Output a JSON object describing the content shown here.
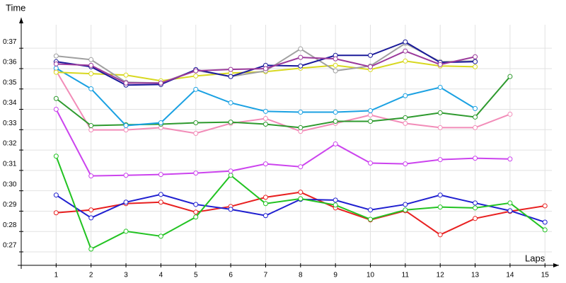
{
  "chart_data": {
    "type": "line",
    "xlabel": "Laps",
    "ylabel": "Time",
    "x": [
      1,
      2,
      3,
      4,
      5,
      6,
      7,
      8,
      9,
      10,
      11,
      12,
      13,
      14,
      15
    ],
    "xlim": [
      0,
      15.4
    ],
    "xticks": [
      1,
      2,
      3,
      4,
      5,
      6,
      7,
      8,
      9,
      10,
      11,
      12,
      13,
      14,
      15
    ],
    "ylim": [
      26.34,
      38.5
    ],
    "yticks": [
      {
        "value": 27,
        "label": "0:27"
      },
      {
        "value": 28,
        "label": "0:28"
      },
      {
        "value": 29,
        "label": "0:29"
      },
      {
        "value": 30,
        "label": "0:30"
      },
      {
        "value": 31,
        "label": "0:31"
      },
      {
        "value": 32,
        "label": "0:32"
      },
      {
        "value": 33,
        "label": "0:33"
      },
      {
        "value": 34,
        "label": "0:34"
      },
      {
        "value": 35,
        "label": "0:35"
      },
      {
        "value": 36,
        "label": "0:36"
      },
      {
        "value": 37,
        "label": "0:37"
      }
    ],
    "grid": true,
    "series": [
      {
        "color": "#e82020",
        "values": [
          28.92,
          29.06,
          29.37,
          29.44,
          28.95,
          29.23,
          29.68,
          29.93,
          29.16,
          28.57,
          29.02,
          27.84,
          28.64,
          28.99,
          29.26
        ]
      },
      {
        "color": "#1f1fd0",
        "values": [
          29.79,
          28.67,
          29.44,
          29.82,
          29.33,
          29.09,
          28.78,
          29.58,
          29.54,
          29.06,
          29.33,
          29.79,
          29.4,
          29.02,
          28.46
        ]
      },
      {
        "color": "#22c322",
        "values": [
          31.7,
          27.14,
          28.01,
          27.77,
          28.71,
          30.76,
          29.37,
          29.61,
          29.3,
          28.6,
          29.06,
          29.2,
          29.16,
          29.4,
          28.08
        ]
      },
      {
        "color": "#cc44ee",
        "values": [
          34.0,
          30.73,
          30.76,
          30.8,
          30.87,
          30.97,
          31.32,
          31.18,
          32.3,
          31.36,
          31.32,
          31.53,
          31.6,
          31.56,
          null
        ]
      },
      {
        "color": "#f28cb8",
        "values": [
          35.89,
          32.99,
          32.99,
          33.1,
          32.82,
          33.31,
          33.55,
          32.92,
          33.31,
          33.72,
          33.31,
          33.1,
          33.1,
          33.76,
          null
        ]
      },
      {
        "color": "#2e9a2e",
        "values": [
          34.53,
          33.2,
          33.24,
          33.27,
          33.34,
          33.37,
          33.27,
          33.1,
          33.41,
          33.41,
          33.59,
          33.83,
          33.62,
          35.61,
          null
        ]
      },
      {
        "color": "#1ba1e2",
        "values": [
          36.02,
          35.01,
          33.2,
          33.34,
          34.98,
          34.32,
          33.9,
          33.86,
          33.86,
          33.93,
          34.67,
          35.08,
          34.04,
          null,
          null
        ]
      },
      {
        "color": "#d8d820",
        "values": [
          35.82,
          35.75,
          35.68,
          35.4,
          35.64,
          35.78,
          35.85,
          36.02,
          36.16,
          35.95,
          36.37,
          36.13,
          36.09,
          null,
          null
        ]
      },
      {
        "color": "#a0a0a0",
        "values": [
          36.62,
          36.44,
          35.33,
          35.29,
          35.92,
          35.61,
          35.89,
          36.97,
          35.89,
          36.13,
          37.24,
          36.34,
          36.37,
          null,
          null
        ]
      },
      {
        "color": "#1a1a9a",
        "values": [
          36.34,
          36.09,
          35.19,
          35.22,
          35.95,
          35.61,
          36.16,
          36.13,
          36.65,
          36.65,
          37.31,
          36.3,
          36.34,
          null,
          null
        ]
      },
      {
        "color": "#9b3a9b",
        "values": [
          36.23,
          36.16,
          35.29,
          35.29,
          35.89,
          35.96,
          36.0,
          36.55,
          36.48,
          36.09,
          36.86,
          36.2,
          36.58,
          null,
          null
        ]
      }
    ]
  }
}
